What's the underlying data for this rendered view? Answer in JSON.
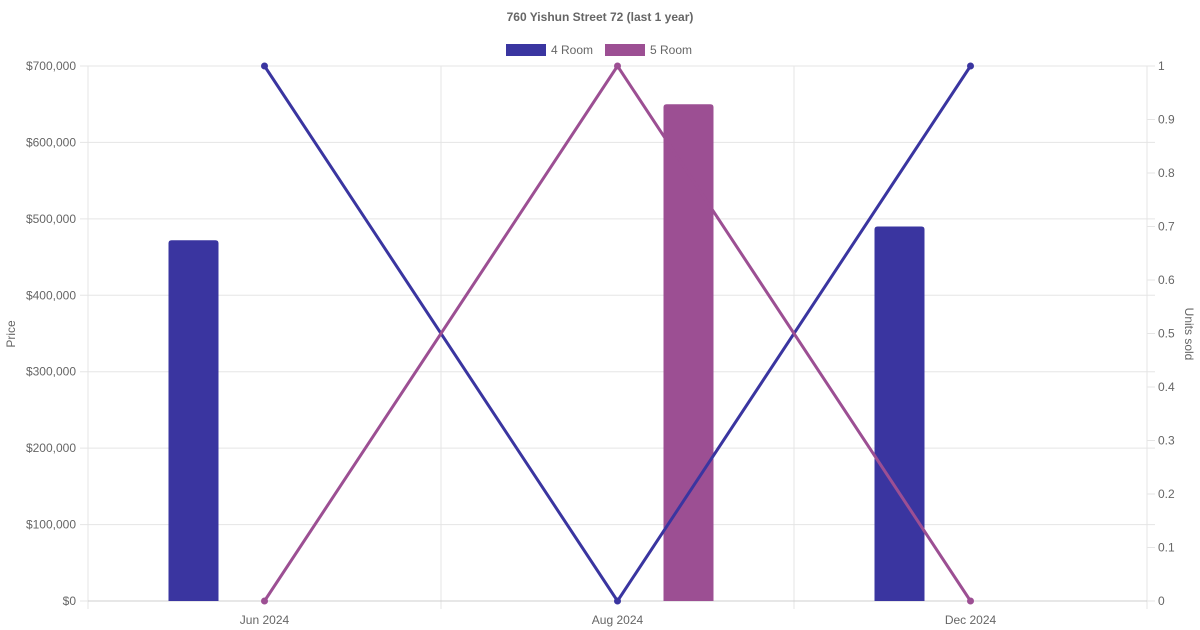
{
  "chart_data": {
    "type": "bar",
    "title": "760 Yishun Street 72 (last 1 year)",
    "categories": [
      "Jun 2024",
      "Aug 2024",
      "Dec 2024"
    ],
    "legend": {
      "position": "top",
      "entries": [
        "4 Room",
        "5 Room"
      ]
    },
    "y_left": {
      "label": "Price",
      "range": [
        0,
        700000
      ],
      "ticks": [
        "$0",
        "$100,000",
        "$200,000",
        "$300,000",
        "$400,000",
        "$500,000",
        "$600,000",
        "$700,000"
      ]
    },
    "y_right": {
      "label": "Units sold",
      "range": [
        0,
        1
      ],
      "ticks": [
        "0",
        "0.1",
        "0.2",
        "0.3",
        "0.4",
        "0.5",
        "0.6",
        "0.7",
        "0.8",
        "0.9",
        "1"
      ]
    },
    "grid": true,
    "series": [
      {
        "name": "4 Room",
        "color": "#3a35a0",
        "price": [
          472000,
          null,
          490000
        ],
        "units_sold": [
          1,
          0,
          1
        ]
      },
      {
        "name": "5 Room",
        "color": "#9c4f93",
        "price": [
          null,
          650000,
          null
        ],
        "units_sold": [
          0,
          1,
          0
        ]
      }
    ]
  }
}
